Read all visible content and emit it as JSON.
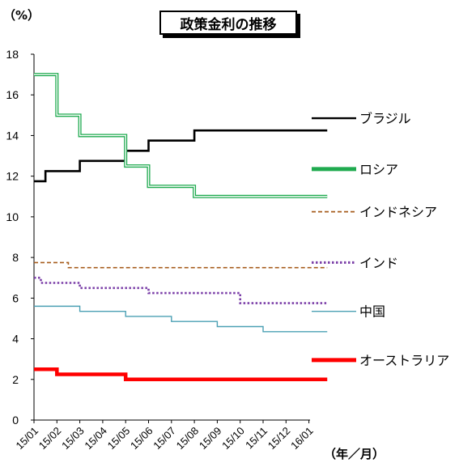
{
  "chart_data": {
    "type": "line",
    "title": "政策金利の推移",
    "ylabel": "（%）",
    "xlabel": "（年／月）",
    "ylim": [
      0,
      18
    ],
    "yticks": [
      0,
      2,
      4,
      6,
      8,
      10,
      12,
      14,
      16,
      18
    ],
    "x": [
      "15/01",
      "15/02",
      "15/03",
      "15/04",
      "15/05",
      "15/06",
      "15/07",
      "15/08",
      "15/09",
      "15/10",
      "15/11",
      "15/12",
      "16/01"
    ],
    "legend_position": "right",
    "series": [
      {
        "name": "ブラジル",
        "color": "#000000",
        "style": "solid",
        "steps": [
          [
            "15/01",
            11.75
          ],
          [
            "15/01.5",
            12.25
          ],
          [
            "15/03",
            12.75
          ],
          [
            "15/05",
            13.25
          ],
          [
            "15/06",
            13.75
          ],
          [
            "15/08",
            14.25
          ],
          [
            "16/01.8",
            14.25
          ]
        ]
      },
      {
        "name": "ロシア",
        "color": "#1faa4f",
        "style": "double",
        "steps": [
          [
            "15/01",
            17.0
          ],
          [
            "15/02",
            15.0
          ],
          [
            "15/03",
            14.0
          ],
          [
            "15/05",
            12.5
          ],
          [
            "15/06",
            11.5
          ],
          [
            "15/08",
            11.0
          ],
          [
            "16/01.8",
            11.0
          ]
        ]
      },
      {
        "name": "インドネシア",
        "color": "#a65c1c",
        "style": "dashed",
        "steps": [
          [
            "15/01",
            7.75
          ],
          [
            "15/02.5",
            7.5
          ],
          [
            "16/01.8",
            7.5
          ]
        ]
      },
      {
        "name": "インド",
        "color": "#7b3fa8",
        "style": "dotted",
        "steps": [
          [
            "15/01",
            7.0
          ],
          [
            "15/01.3",
            6.75
          ],
          [
            "15/03",
            6.5
          ],
          [
            "15/06",
            6.25
          ],
          [
            "15/10",
            5.75
          ],
          [
            "16/01.8",
            5.75
          ]
        ]
      },
      {
        "name": "中国",
        "color": "#4ba0b4",
        "style": "solid-thin",
        "steps": [
          [
            "15/01",
            5.6
          ],
          [
            "15/03",
            5.35
          ],
          [
            "15/05",
            5.1
          ],
          [
            "15/07",
            4.85
          ],
          [
            "15/09",
            4.6
          ],
          [
            "15/11",
            4.35
          ],
          [
            "16/01.8",
            4.35
          ]
        ]
      },
      {
        "name": "オーストラリア",
        "color": "#ff0000",
        "style": "thick",
        "steps": [
          [
            "15/01",
            2.5
          ],
          [
            "15/02",
            2.25
          ],
          [
            "15/05",
            2.0
          ],
          [
            "16/01.8",
            2.0
          ]
        ]
      }
    ]
  }
}
